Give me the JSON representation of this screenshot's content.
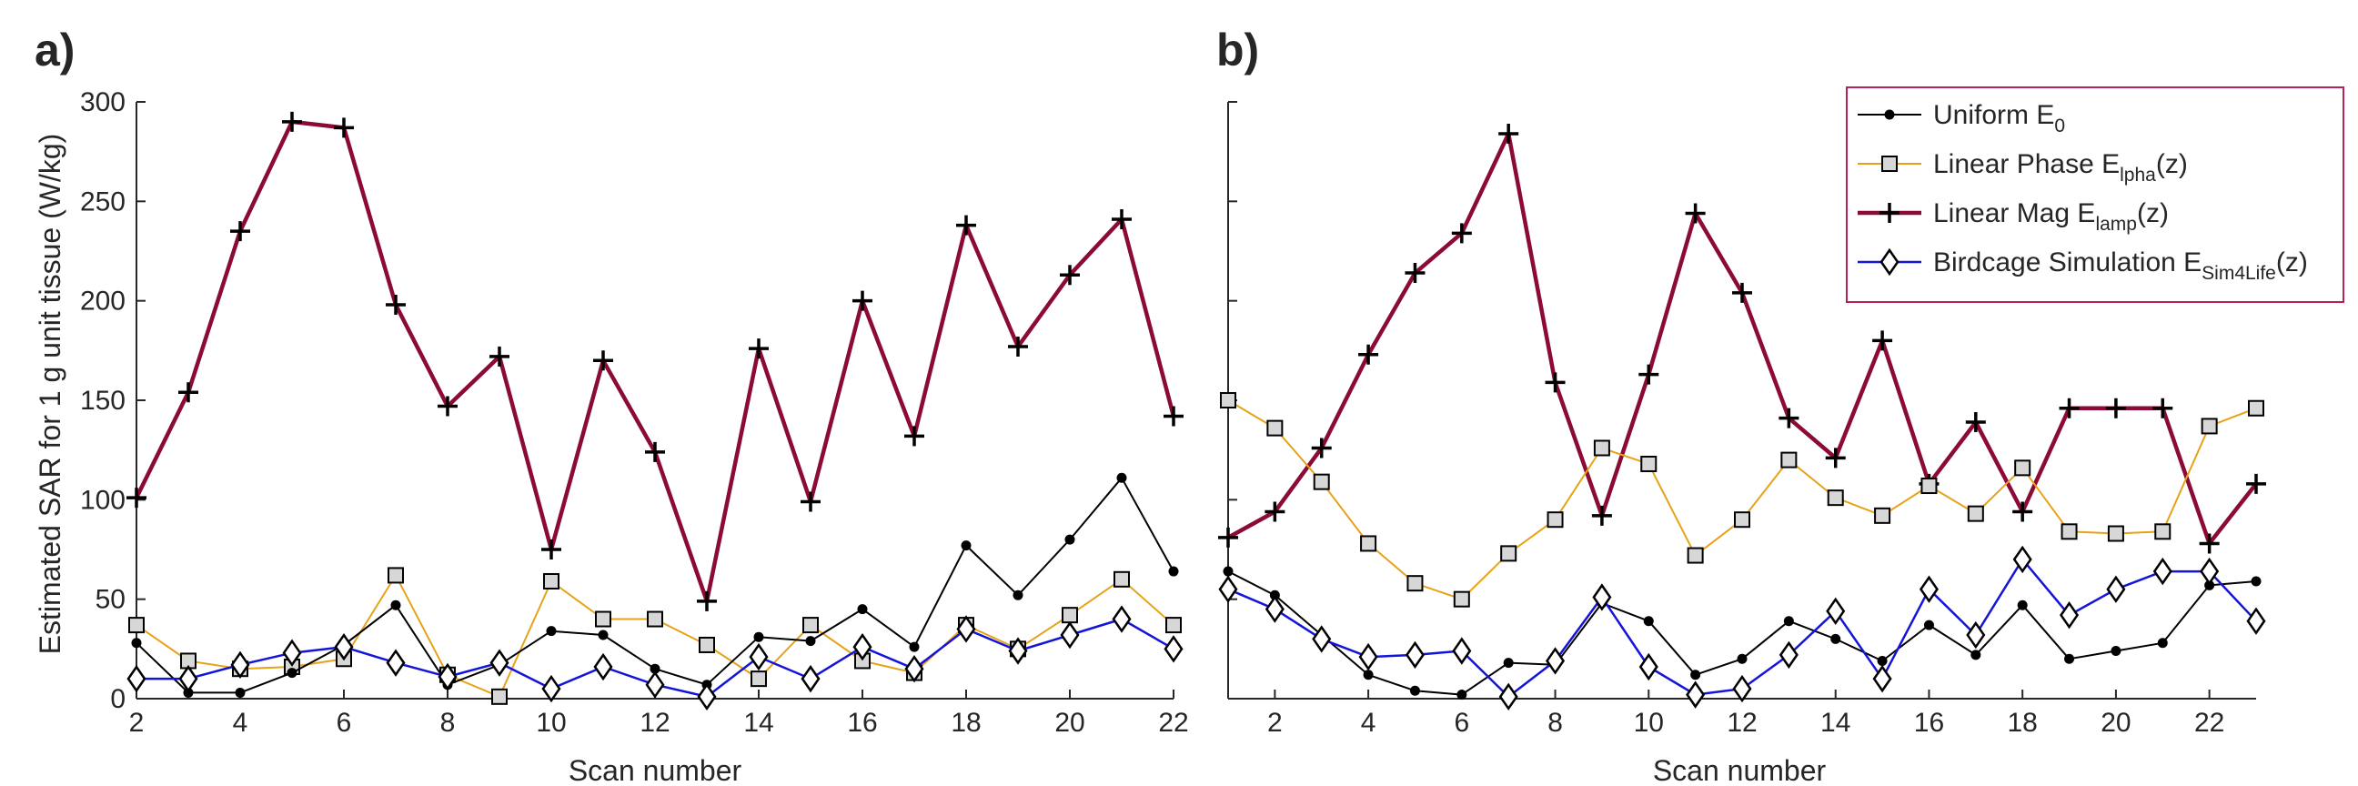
{
  "chart_data": [
    {
      "panel_label": "a)",
      "type": "line",
      "xlabel": "Scan number",
      "ylabel": "Estimated SAR for 1 g unit tissue (W/kg)",
      "xlim": [
        2,
        22
      ],
      "ylim": [
        0,
        300
      ],
      "xticks": [
        2,
        4,
        6,
        8,
        10,
        12,
        14,
        16,
        18,
        20,
        22
      ],
      "yticks": [
        0,
        50,
        100,
        150,
        200,
        250,
        300
      ],
      "x": [
        2,
        3,
        4,
        5,
        6,
        7,
        8,
        9,
        10,
        11,
        12,
        13,
        14,
        15,
        16,
        17,
        18,
        19,
        20,
        21,
        22
      ],
      "series": [
        {
          "values": [
            101,
            154,
            235,
            290,
            287,
            198,
            147,
            172,
            75,
            170,
            124,
            49,
            176,
            99,
            200,
            132,
            238,
            177,
            213,
            241,
            142
          ]
        },
        {
          "values": [
            37,
            19,
            15,
            16,
            20,
            62,
            12,
            1,
            59,
            40,
            40,
            27,
            10,
            37,
            19,
            13,
            37,
            25,
            42,
            60,
            37
          ]
        },
        {
          "values": [
            28,
            3,
            3,
            13,
            27,
            47,
            7,
            17,
            34,
            32,
            15,
            7,
            31,
            29,
            45,
            26,
            77,
            52,
            80,
            111,
            64
          ]
        },
        {
          "values": [
            10,
            10,
            17,
            23,
            26,
            18,
            11,
            18,
            5,
            16,
            7,
            1,
            21,
            10,
            26,
            15,
            35,
            24,
            32,
            40,
            25
          ]
        }
      ]
    },
    {
      "panel_label": "b)",
      "type": "line",
      "xlabel": "Scan number",
      "ylabel": "",
      "xlim": [
        1,
        23
      ],
      "ylim": [
        0,
        300
      ],
      "xticks": [
        2,
        4,
        6,
        8,
        10,
        12,
        14,
        16,
        18,
        20,
        22
      ],
      "x": [
        1,
        2,
        3,
        4,
        5,
        6,
        7,
        8,
        9,
        10,
        11,
        12,
        13,
        14,
        15,
        16,
        17,
        18,
        19,
        20,
        21,
        22,
        23
      ],
      "legend_position": "top-right",
      "series": [
        {
          "name": "Linear Mag E",
          "name_sub": "lamp",
          "name_suffix": "(z)",
          "values": [
            81,
            94,
            126,
            173,
            214,
            234,
            284,
            159,
            92,
            163,
            244,
            204,
            141,
            121,
            180,
            108,
            139,
            94,
            146,
            146,
            146,
            78,
            108
          ]
        },
        {
          "name": "Linear Phase E",
          "name_sub": "lpha",
          "name_suffix": "(z)",
          "values": [
            150,
            136,
            109,
            78,
            58,
            50,
            73,
            90,
            126,
            118,
            72,
            90,
            120,
            101,
            92,
            107,
            93,
            116,
            84,
            83,
            84,
            137,
            146
          ]
        },
        {
          "name": "Uniform E",
          "name_sub": "0",
          "name_suffix": "",
          "values": [
            64,
            52,
            32,
            12,
            4,
            2,
            18,
            17,
            48,
            39,
            12,
            20,
            39,
            30,
            19,
            37,
            22,
            47,
            20,
            24,
            28,
            57,
            59
          ]
        },
        {
          "name": "Birdcage Simulation E",
          "name_sub": "Sim4Life",
          "name_suffix": "(z)",
          "values": [
            55,
            45,
            30,
            21,
            22,
            24,
            1,
            19,
            51,
            16,
            2,
            5,
            22,
            44,
            10,
            55,
            32,
            70,
            42,
            55,
            64,
            64,
            39
          ]
        }
      ]
    }
  ],
  "colors": {
    "uniform": "#000000",
    "linear_phase": "#e6a317",
    "linear_mag": "#8b0a36",
    "birdcage": "#1414d9",
    "legend_border": "#b0235a",
    "axis": "#262626"
  }
}
